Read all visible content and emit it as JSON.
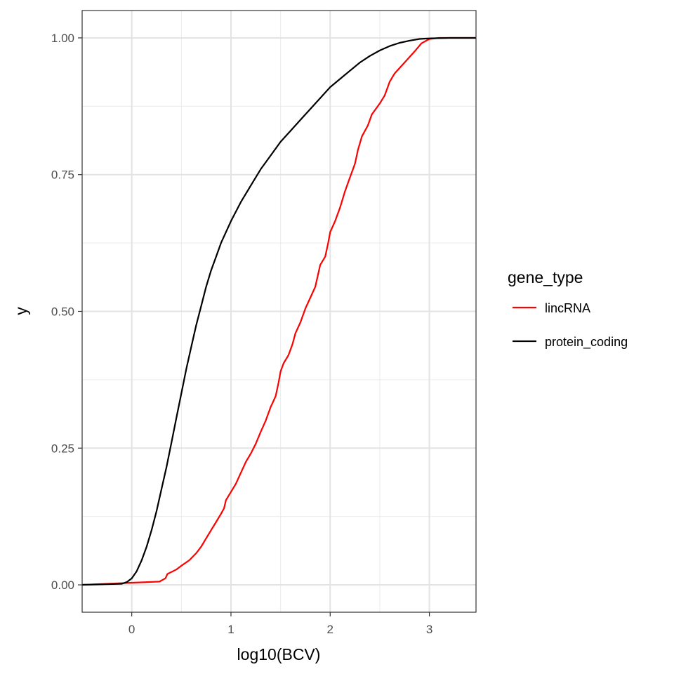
{
  "chart_data": {
    "type": "line",
    "title": "",
    "xlabel": "log10(BCV)",
    "ylabel": "y",
    "xlim": [
      -0.5,
      3.47
    ],
    "ylim": [
      -0.05,
      1.05
    ],
    "x_ticks": [
      0,
      1,
      2,
      3
    ],
    "x_tick_labels": [
      "0",
      "1",
      "2",
      "3"
    ],
    "y_ticks": [
      0,
      0.25,
      0.5,
      0.75,
      1.0
    ],
    "y_tick_labels": [
      "0.00",
      "0.25",
      "0.50",
      "0.75",
      "1.00"
    ],
    "grid": true,
    "legend": {
      "title": "gene_type",
      "placement": "right"
    },
    "series": [
      {
        "name": "lincRNA",
        "color": "#ff0000",
        "points": [
          [
            -0.5,
            0.0
          ],
          [
            0.28,
            0.006
          ],
          [
            0.34,
            0.012
          ],
          [
            0.36,
            0.02
          ],
          [
            0.45,
            0.028
          ],
          [
            0.5,
            0.035
          ],
          [
            0.58,
            0.045
          ],
          [
            0.65,
            0.058
          ],
          [
            0.7,
            0.07
          ],
          [
            0.75,
            0.085
          ],
          [
            0.8,
            0.1
          ],
          [
            0.85,
            0.115
          ],
          [
            0.9,
            0.13
          ],
          [
            0.93,
            0.14
          ],
          [
            0.95,
            0.155
          ],
          [
            1.0,
            0.17
          ],
          [
            1.05,
            0.185
          ],
          [
            1.1,
            0.205
          ],
          [
            1.15,
            0.225
          ],
          [
            1.2,
            0.24
          ],
          [
            1.25,
            0.258
          ],
          [
            1.3,
            0.28
          ],
          [
            1.35,
            0.3
          ],
          [
            1.4,
            0.325
          ],
          [
            1.45,
            0.345
          ],
          [
            1.48,
            0.37
          ],
          [
            1.5,
            0.39
          ],
          [
            1.53,
            0.405
          ],
          [
            1.58,
            0.42
          ],
          [
            1.62,
            0.44
          ],
          [
            1.65,
            0.46
          ],
          [
            1.7,
            0.48
          ],
          [
            1.75,
            0.505
          ],
          [
            1.8,
            0.525
          ],
          [
            1.85,
            0.545
          ],
          [
            1.9,
            0.585
          ],
          [
            1.95,
            0.6
          ],
          [
            1.98,
            0.625
          ],
          [
            2.0,
            0.645
          ],
          [
            2.05,
            0.665
          ],
          [
            2.1,
            0.69
          ],
          [
            2.15,
            0.72
          ],
          [
            2.2,
            0.745
          ],
          [
            2.25,
            0.77
          ],
          [
            2.28,
            0.795
          ],
          [
            2.32,
            0.82
          ],
          [
            2.38,
            0.84
          ],
          [
            2.42,
            0.86
          ],
          [
            2.5,
            0.88
          ],
          [
            2.55,
            0.895
          ],
          [
            2.6,
            0.92
          ],
          [
            2.65,
            0.935
          ],
          [
            2.75,
            0.955
          ],
          [
            2.85,
            0.975
          ],
          [
            2.92,
            0.99
          ],
          [
            3.0,
            0.998
          ],
          [
            3.1,
            1.0
          ],
          [
            3.47,
            1.0
          ]
        ]
      },
      {
        "name": "protein_coding",
        "color": "#000000",
        "points": [
          [
            -0.5,
            0.0
          ],
          [
            -0.1,
            0.002
          ],
          [
            -0.05,
            0.005
          ],
          [
            0.0,
            0.012
          ],
          [
            0.05,
            0.025
          ],
          [
            0.1,
            0.045
          ],
          [
            0.15,
            0.07
          ],
          [
            0.2,
            0.1
          ],
          [
            0.25,
            0.135
          ],
          [
            0.3,
            0.175
          ],
          [
            0.35,
            0.215
          ],
          [
            0.4,
            0.26
          ],
          [
            0.45,
            0.305
          ],
          [
            0.5,
            0.35
          ],
          [
            0.55,
            0.395
          ],
          [
            0.6,
            0.435
          ],
          [
            0.65,
            0.475
          ],
          [
            0.7,
            0.51
          ],
          [
            0.75,
            0.545
          ],
          [
            0.8,
            0.575
          ],
          [
            0.85,
            0.6
          ],
          [
            0.9,
            0.625
          ],
          [
            1.0,
            0.665
          ],
          [
            1.1,
            0.7
          ],
          [
            1.2,
            0.73
          ],
          [
            1.3,
            0.76
          ],
          [
            1.4,
            0.785
          ],
          [
            1.5,
            0.81
          ],
          [
            1.6,
            0.83
          ],
          [
            1.7,
            0.85
          ],
          [
            1.8,
            0.87
          ],
          [
            1.9,
            0.89
          ],
          [
            2.0,
            0.91
          ],
          [
            2.1,
            0.925
          ],
          [
            2.2,
            0.94
          ],
          [
            2.3,
            0.955
          ],
          [
            2.4,
            0.967
          ],
          [
            2.5,
            0.977
          ],
          [
            2.6,
            0.985
          ],
          [
            2.7,
            0.991
          ],
          [
            2.8,
            0.995
          ],
          [
            2.9,
            0.998
          ],
          [
            3.0,
            0.999
          ],
          [
            3.2,
            1.0
          ],
          [
            3.47,
            1.0
          ]
        ]
      }
    ]
  }
}
